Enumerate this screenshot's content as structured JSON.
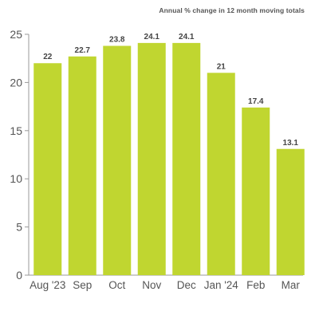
{
  "chart_data": {
    "type": "bar",
    "subtitle": "Annual % change in 12 month moving totals",
    "categories": [
      "Aug '23",
      "Sep",
      "Oct",
      "Nov",
      "Dec",
      "Jan '24",
      "Feb",
      "Mar"
    ],
    "values": [
      22,
      22.7,
      23.8,
      24.1,
      24.1,
      21,
      17.4,
      13.1
    ],
    "value_labels": [
      "22",
      "22.7",
      "23.8",
      "24.1",
      "24.1",
      "21",
      "17.4",
      "13.1"
    ],
    "ylim": [
      0,
      25
    ],
    "yticks": [
      0,
      5,
      10,
      15,
      20,
      25
    ],
    "grid": false,
    "legend": "none",
    "colors": {
      "bar": "#c0d630",
      "axis": "#999999",
      "text": "#555555"
    }
  }
}
